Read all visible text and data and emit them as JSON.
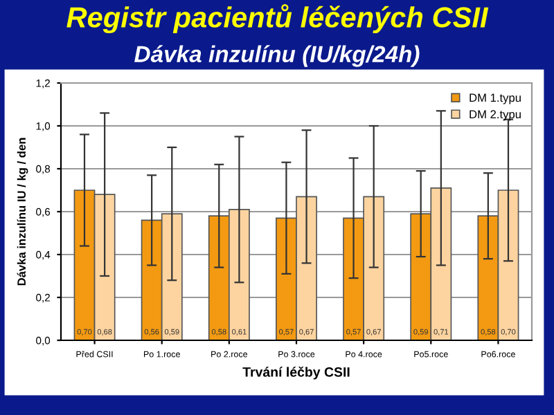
{
  "chart_data": {
    "type": "bar",
    "title": "Registr pacientů léčených CSII",
    "subtitle": "Dávka inzulínu (IU/kg/24h)",
    "xlabel": "Trvání léčby CSII",
    "ylabel": "Dávka inzulínu IU / kg / den",
    "categories": [
      "Před CSII",
      "Po 1.roce",
      "Po 2.roce",
      "Po 3.roce",
      "Po 4.roce",
      "Po5.roce",
      "Po6.roce"
    ],
    "series": [
      {
        "name": "DM 1.typu",
        "color": "#f39a12",
        "values": [
          0.7,
          0.56,
          0.58,
          0.57,
          0.57,
          0.59,
          0.58
        ],
        "errors": [
          0.26,
          0.21,
          0.24,
          0.26,
          0.28,
          0.2,
          0.2
        ],
        "value_labels": [
          "0,70",
          "0,56",
          "0,58",
          "0,57",
          "0,57",
          "0,59",
          "0,58"
        ]
      },
      {
        "name": "DM 2.typu",
        "color": "#fdd4a0",
        "values": [
          0.68,
          0.59,
          0.61,
          0.67,
          0.67,
          0.71,
          0.7
        ],
        "errors": [
          0.38,
          0.31,
          0.34,
          0.31,
          0.33,
          0.36,
          0.33
        ],
        "value_labels": [
          "0,68",
          "0,59",
          "0,61",
          "0,67",
          "0,67",
          "0,71",
          "0,70"
        ]
      }
    ],
    "ylim": [
      0,
      1.2
    ],
    "yticks": [
      {
        "value": 0,
        "label": "0,0"
      },
      {
        "value": 0.2,
        "label": "0,2"
      },
      {
        "value": 0.4,
        "label": "0,4"
      },
      {
        "value": 0.6,
        "label": "0,6"
      },
      {
        "value": 0.8,
        "label": "0,8"
      },
      {
        "value": 1.0,
        "label": "1,0"
      },
      {
        "value": 1.2,
        "label": "1,2"
      }
    ],
    "grid": "y",
    "legend": "top right"
  }
}
